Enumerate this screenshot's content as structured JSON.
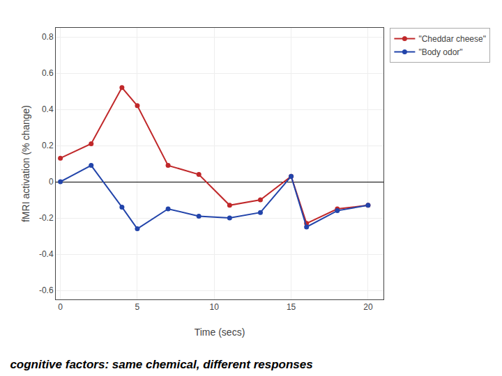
{
  "chart_data": {
    "type": "line",
    "title": "cognitive factors: same chemical, different responses",
    "xlabel": "Time (secs)",
    "ylabel": "fMRI activation (% change)",
    "x": [
      0,
      2,
      4,
      5,
      7,
      9,
      11,
      13,
      15,
      16,
      18,
      20
    ],
    "series": [
      {
        "name": "\"Cheddar cheese\"",
        "color": "#C0282A",
        "values": [
          0.13,
          0.21,
          0.52,
          0.42,
          0.09,
          0.04,
          -0.13,
          -0.1,
          0.03,
          -0.23,
          -0.15,
          -0.13
        ]
      },
      {
        "name": "\"Body odor\"",
        "color": "#2244AA",
        "values": [
          0.0,
          0.09,
          -0.14,
          -0.26,
          -0.15,
          -0.19,
          -0.2,
          -0.17,
          0.03,
          -0.25,
          -0.16,
          -0.13
        ]
      }
    ],
    "xlim": [
      -0.3,
      21.0
    ],
    "ylim": [
      -0.65,
      0.85
    ],
    "xticks": [
      0,
      5,
      10,
      15,
      20
    ],
    "yticks": [
      -0.6,
      -0.4,
      -0.2,
      0.0,
      0.2,
      0.4,
      0.6,
      0.8
    ],
    "marker": "circle",
    "grid": true,
    "legend": "upper right"
  }
}
